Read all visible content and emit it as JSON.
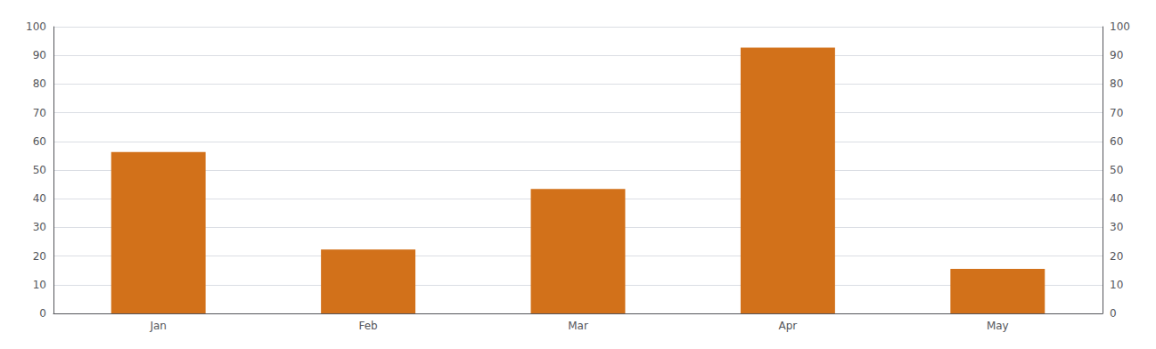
{
  "chart_data": {
    "type": "bar",
    "categories": [
      "Jan",
      "Feb",
      "Mar",
      "Apr",
      "May"
    ],
    "values": [
      56.3,
      22.3,
      43.4,
      92.7,
      15.5
    ],
    "color": "#D2711A",
    "ylim": [
      0,
      100
    ],
    "yticks": [
      0,
      10,
      20,
      30,
      40,
      50,
      60,
      70,
      80,
      90,
      100
    ],
    "y2lim": [
      0,
      100
    ],
    "y2ticks": [
      0,
      10,
      20,
      30,
      40,
      50,
      60,
      70,
      80,
      90,
      100
    ],
    "grid": true
  }
}
